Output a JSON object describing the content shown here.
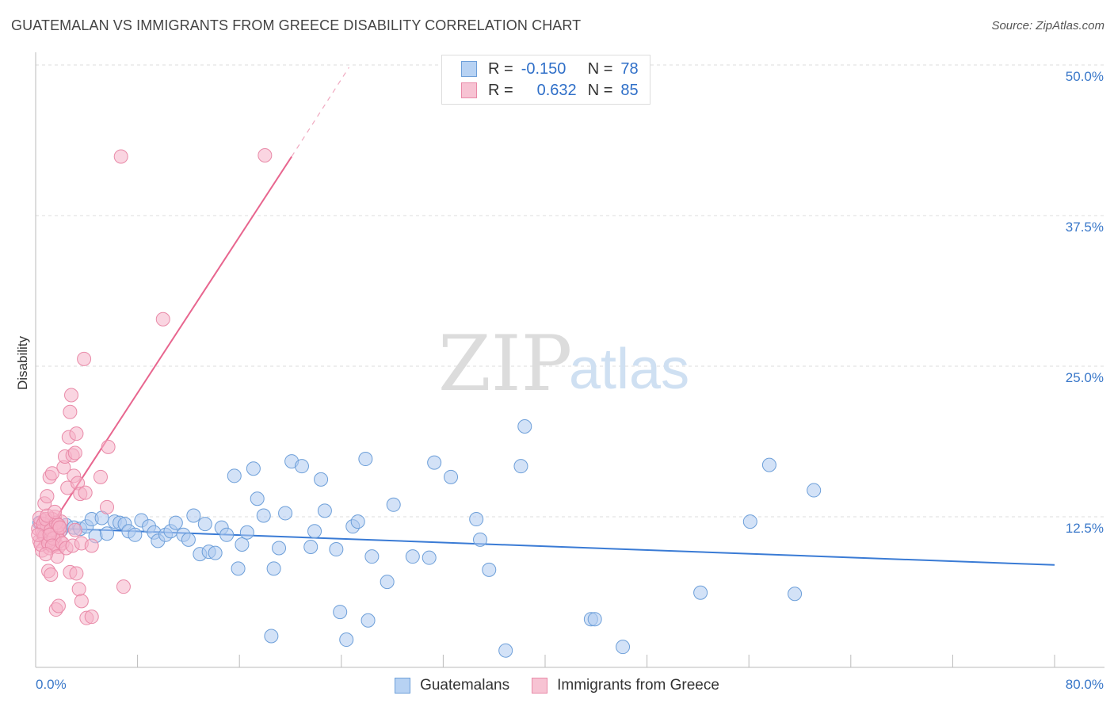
{
  "title": "GUATEMALAN VS IMMIGRANTS FROM GREECE DISABILITY CORRELATION CHART",
  "source": "Source: ZipAtlas.com",
  "watermark": {
    "zip": "ZIP",
    "atlas": "atlas"
  },
  "colors": {
    "blue": "#3a7bd5",
    "blue_fill": "#aecbf0",
    "pink": "#e8668f",
    "pink_fill": "#f5b3c8",
    "axis_label": "#3a78c9"
  },
  "legend": {
    "rows": [
      {
        "r_label": "R =",
        "r_value": "-0.150",
        "n_label": "N =",
        "n_value": "78"
      },
      {
        "r_label": "R =",
        "r_value": "0.632",
        "n_label": "N =",
        "n_value": "85"
      }
    ]
  },
  "chart_data": {
    "type": "scatter",
    "title": "GUATEMALAN VS IMMIGRANTS FROM GREECE DISABILITY CORRELATION CHART",
    "xlabel": "",
    "ylabel": "Disability",
    "xlim": [
      0,
      80
    ],
    "ylim": [
      0,
      50
    ],
    "x_tick_labels": [
      "0.0%",
      "80.0%"
    ],
    "y_ticks": [
      12.5,
      25.0,
      37.5,
      50.0
    ],
    "y_tick_labels": [
      "12.5%",
      "25.0%",
      "37.5%",
      "50.0%"
    ],
    "grid": true,
    "series": [
      {
        "name": "Guatemalans",
        "r": -0.15,
        "n": 78,
        "trend": {
          "x0": 0,
          "y0": 11.6,
          "x1": 80,
          "y1": 8.5
        },
        "points": [
          [
            0.3,
            12.0
          ],
          [
            0.8,
            11.3
          ],
          [
            1.0,
            11.8
          ],
          [
            1.3,
            11.5
          ],
          [
            1.6,
            11.9
          ],
          [
            2.0,
            11.4
          ],
          [
            2.4,
            11.8
          ],
          [
            3.0,
            11.6
          ],
          [
            3.5,
            11.5
          ],
          [
            4.0,
            11.7
          ],
          [
            4.4,
            12.3
          ],
          [
            4.7,
            10.9
          ],
          [
            5.2,
            12.4
          ],
          [
            5.6,
            11.1
          ],
          [
            6.2,
            12.1
          ],
          [
            6.6,
            12.0
          ],
          [
            7.0,
            11.9
          ],
          [
            7.3,
            11.3
          ],
          [
            7.8,
            11.0
          ],
          [
            8.3,
            12.2
          ],
          [
            8.9,
            11.7
          ],
          [
            9.3,
            11.2
          ],
          [
            9.6,
            10.5
          ],
          [
            10.2,
            11.0
          ],
          [
            10.6,
            11.3
          ],
          [
            11.0,
            12.0
          ],
          [
            11.6,
            11.0
          ],
          [
            12.0,
            10.6
          ],
          [
            12.4,
            12.6
          ],
          [
            12.9,
            9.4
          ],
          [
            13.3,
            11.9
          ],
          [
            13.6,
            9.6
          ],
          [
            14.1,
            9.5
          ],
          [
            14.6,
            11.6
          ],
          [
            15.0,
            11.0
          ],
          [
            15.6,
            15.9
          ],
          [
            15.9,
            8.2
          ],
          [
            16.2,
            10.2
          ],
          [
            16.6,
            11.2
          ],
          [
            17.1,
            16.5
          ],
          [
            17.4,
            14.0
          ],
          [
            17.9,
            12.6
          ],
          [
            18.5,
            2.6
          ],
          [
            18.7,
            8.2
          ],
          [
            19.1,
            9.9
          ],
          [
            19.6,
            12.8
          ],
          [
            20.1,
            17.1
          ],
          [
            20.9,
            16.7
          ],
          [
            21.6,
            10.0
          ],
          [
            21.9,
            11.3
          ],
          [
            22.4,
            15.6
          ],
          [
            22.7,
            13.0
          ],
          [
            23.6,
            9.8
          ],
          [
            23.9,
            4.6
          ],
          [
            24.4,
            2.3
          ],
          [
            24.9,
            11.7
          ],
          [
            25.3,
            12.1
          ],
          [
            25.9,
            17.3
          ],
          [
            26.1,
            3.9
          ],
          [
            26.4,
            9.2
          ],
          [
            27.6,
            7.1
          ],
          [
            28.1,
            13.5
          ],
          [
            29.6,
            9.2
          ],
          [
            30.9,
            9.1
          ],
          [
            31.3,
            17.0
          ],
          [
            32.6,
            15.8
          ],
          [
            34.6,
            12.3
          ],
          [
            34.9,
            10.6
          ],
          [
            35.6,
            8.1
          ],
          [
            36.9,
            1.4
          ],
          [
            38.1,
            16.7
          ],
          [
            38.4,
            20.0
          ],
          [
            43.6,
            4.0
          ],
          [
            43.9,
            4.0
          ],
          [
            46.1,
            1.7
          ],
          [
            52.2,
            6.2
          ],
          [
            56.1,
            12.1
          ],
          [
            57.6,
            16.8
          ],
          [
            59.6,
            6.1
          ],
          [
            61.1,
            14.7
          ]
        ]
      },
      {
        "name": "Immigrants from Greece",
        "r": 0.632,
        "n": 85,
        "trend": {
          "x0": 0,
          "y0": 9.8,
          "x1": 20.1,
          "y1": 42.4
        },
        "trend_dashed": {
          "x0": 20.1,
          "y0": 42.4,
          "x1": 24.6,
          "y1": 49.8
        },
        "points": [
          [
            0.2,
            11.5
          ],
          [
            0.3,
            10.5
          ],
          [
            0.4,
            12.0
          ],
          [
            0.5,
            9.7
          ],
          [
            0.6,
            11.0
          ],
          [
            0.7,
            12.2
          ],
          [
            0.8,
            10.8
          ],
          [
            0.9,
            11.5
          ],
          [
            1.0,
            12.0
          ],
          [
            1.1,
            9.9
          ],
          [
            1.2,
            10.4
          ],
          [
            1.3,
            11.8
          ],
          [
            1.4,
            11.1
          ],
          [
            1.5,
            12.5
          ],
          [
            1.6,
            10.2
          ],
          [
            1.7,
            11.6
          ],
          [
            1.8,
            10.0
          ],
          [
            1.9,
            11.3
          ],
          [
            2.0,
            12.1
          ],
          [
            0.3,
            12.4
          ],
          [
            0.5,
            11.3
          ],
          [
            0.7,
            10.9
          ],
          [
            0.9,
            11.7
          ],
          [
            1.1,
            10.6
          ],
          [
            1.3,
            12.3
          ],
          [
            1.5,
            10.8
          ],
          [
            1.7,
            11.2
          ],
          [
            1.9,
            10.5
          ],
          [
            0.4,
            10.2
          ],
          [
            0.6,
            11.9
          ],
          [
            0.8,
            12.3
          ],
          [
            1.0,
            10.3
          ],
          [
            1.2,
            11.4
          ],
          [
            1.4,
            10.7
          ],
          [
            1.6,
            12.0
          ],
          [
            0.2,
            11.0
          ],
          [
            0.9,
            12.6
          ],
          [
            1.1,
            11.0
          ],
          [
            1.3,
            10.1
          ],
          [
            1.8,
            11.8
          ],
          [
            0.7,
            13.6
          ],
          [
            0.9,
            14.2
          ],
          [
            1.1,
            15.8
          ],
          [
            1.3,
            16.1
          ],
          [
            1.5,
            12.9
          ],
          [
            1.7,
            9.2
          ],
          [
            1.9,
            11.6
          ],
          [
            2.1,
            10.3
          ],
          [
            2.2,
            16.6
          ],
          [
            2.3,
            17.5
          ],
          [
            2.5,
            14.9
          ],
          [
            2.6,
            19.1
          ],
          [
            2.7,
            21.2
          ],
          [
            2.8,
            22.6
          ],
          [
            2.9,
            17.6
          ],
          [
            3.0,
            15.9
          ],
          [
            3.1,
            17.8
          ],
          [
            3.2,
            19.4
          ],
          [
            3.3,
            15.3
          ],
          [
            3.4,
            6.5
          ],
          [
            3.5,
            14.4
          ],
          [
            3.6,
            5.5
          ],
          [
            3.1,
            11.4
          ],
          [
            2.4,
            9.9
          ],
          [
            2.9,
            10.1
          ],
          [
            2.7,
            7.9
          ],
          [
            1.6,
            4.8
          ],
          [
            1.8,
            5.1
          ],
          [
            1.0,
            8.0
          ],
          [
            1.2,
            7.7
          ],
          [
            0.8,
            9.4
          ],
          [
            3.6,
            10.3
          ],
          [
            4.4,
            10.1
          ],
          [
            3.8,
            25.6
          ],
          [
            3.9,
            14.5
          ],
          [
            5.1,
            15.8
          ],
          [
            5.6,
            13.3
          ],
          [
            5.7,
            18.3
          ],
          [
            6.9,
            6.7
          ],
          [
            4.0,
            4.1
          ],
          [
            4.4,
            4.2
          ],
          [
            6.7,
            42.4
          ],
          [
            18.0,
            42.5
          ],
          [
            10.0,
            28.9
          ],
          [
            3.2,
            7.8
          ]
        ]
      }
    ]
  }
}
